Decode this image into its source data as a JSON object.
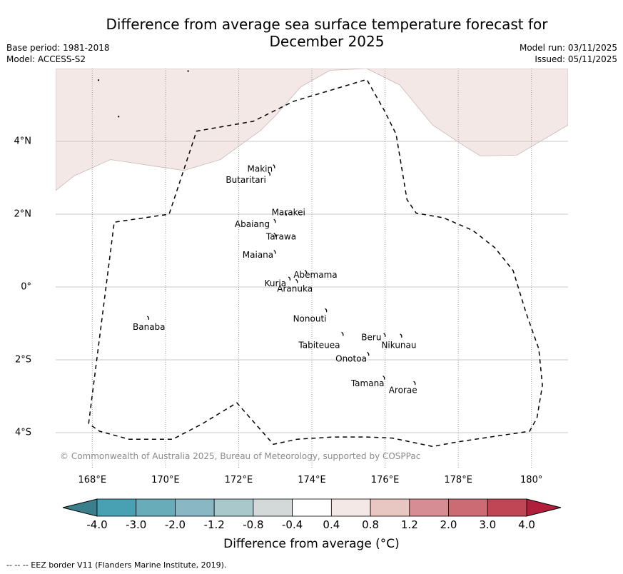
{
  "header": {
    "title_line1": "Difference from average sea surface temperature forecast for",
    "title_line2": "December 2025",
    "base_period": "Base period: 1981-2018",
    "model": "Model: ACCESS-S2",
    "model_run": "Model run: 03/11/2025",
    "issued": "Issued: 05/11/2025"
  },
  "map": {
    "extent": {
      "lon_min": 167.0,
      "lon_max": 181.0,
      "lat_min": -5.0,
      "lat_max": 6.0
    },
    "lat_ticks": [
      {
        "value": 4,
        "label": "4°N"
      },
      {
        "value": 2,
        "label": "2°N"
      },
      {
        "value": 0,
        "label": "0°"
      },
      {
        "value": -2,
        "label": "2°S"
      },
      {
        "value": -4,
        "label": "4°S"
      }
    ],
    "lon_ticks": [
      {
        "value": 168,
        "label": "168°E"
      },
      {
        "value": 170,
        "label": "170°E"
      },
      {
        "value": 172,
        "label": "172°E"
      },
      {
        "value": 174,
        "label": "174°E"
      },
      {
        "value": 176,
        "label": "176°E"
      },
      {
        "value": 178,
        "label": "178°E"
      },
      {
        "value": 180,
        "label": "180°"
      }
    ],
    "anomaly_region": {
      "category": "0.4 to 0.8",
      "color": "#f4e8e6",
      "boundary": [
        [
          167.0,
          2.65
        ],
        [
          167.5,
          3.05
        ],
        [
          168.5,
          3.5
        ],
        [
          170.5,
          3.2
        ],
        [
          171.5,
          3.5
        ],
        [
          172.6,
          4.3
        ],
        [
          173.0,
          4.7
        ],
        [
          173.7,
          5.5
        ],
        [
          174.5,
          5.95
        ],
        [
          175.5,
          6.0
        ],
        [
          176.4,
          5.55
        ],
        [
          177.3,
          4.45
        ],
        [
          178.2,
          3.85
        ],
        [
          178.6,
          3.6
        ],
        [
          179.6,
          3.62
        ],
        [
          181.0,
          4.45
        ],
        [
          181.0,
          6.0
        ],
        [
          167.0,
          6.0
        ]
      ]
    },
    "eez_border": [
      [
        167.9,
        -3.75
      ],
      [
        168.6,
        1.78
      ],
      [
        170.1,
        2.0
      ],
      [
        170.85,
        4.28
      ],
      [
        172.4,
        4.55
      ],
      [
        173.5,
        5.1
      ],
      [
        175.5,
        5.7
      ],
      [
        175.98,
        4.85
      ],
      [
        176.3,
        4.2
      ],
      [
        176.6,
        2.4
      ],
      [
        176.85,
        2.03
      ],
      [
        177.6,
        1.9
      ],
      [
        178.4,
        1.55
      ],
      [
        179.0,
        1.08
      ],
      [
        179.5,
        0.45
      ],
      [
        179.85,
        -0.7
      ],
      [
        180.2,
        -1.7
      ],
      [
        180.3,
        -2.7
      ],
      [
        180.15,
        -3.6
      ],
      [
        179.95,
        -3.96
      ],
      [
        178.0,
        -4.25
      ],
      [
        177.3,
        -4.38
      ],
      [
        176.2,
        -4.15
      ],
      [
        175.5,
        -4.12
      ],
      [
        174.6,
        -4.12
      ],
      [
        173.6,
        -4.18
      ],
      [
        172.95,
        -4.32
      ],
      [
        171.95,
        -3.18
      ],
      [
        171.0,
        -3.76
      ],
      [
        170.2,
        -4.18
      ],
      [
        169.0,
        -4.18
      ],
      [
        168.2,
        -3.96
      ],
      [
        167.9,
        -3.75
      ]
    ],
    "islands": [
      {
        "name": "Makin",
        "lon": 172.98,
        "lat": 3.3,
        "label_lon": 172.93,
        "label_lat": 3.25,
        "anchor": "end"
      },
      {
        "name": "Butaritari",
        "lon": 172.85,
        "lat": 3.1,
        "label_lon": 172.75,
        "label_lat": 2.94,
        "anchor": "end"
      },
      {
        "name": "Marakei",
        "lon": 173.3,
        "lat": 2.0,
        "label_lon": 172.9,
        "label_lat": 2.05,
        "anchor": "start"
      },
      {
        "name": "Abaiang",
        "lon": 173.0,
        "lat": 1.8,
        "label_lon": 172.85,
        "label_lat": 1.73,
        "anchor": "end"
      },
      {
        "name": "Tarawa",
        "lon": 173.0,
        "lat": 1.42,
        "label_lon": 172.75,
        "label_lat": 1.38,
        "anchor": "start"
      },
      {
        "name": "Maiana",
        "lon": 173.0,
        "lat": 0.95,
        "label_lon": 172.95,
        "label_lat": 0.88,
        "anchor": "end"
      },
      {
        "name": "Abemama",
        "lon": 173.85,
        "lat": 0.4,
        "label_lon": 173.5,
        "label_lat": 0.33,
        "anchor": "start"
      },
      {
        "name": "Kuria",
        "lon": 173.4,
        "lat": 0.22,
        "label_lon": 173.3,
        "label_lat": 0.1,
        "anchor": "end"
      },
      {
        "name": "Aranuka",
        "lon": 173.6,
        "lat": 0.15,
        "label_lon": 173.05,
        "label_lat": -0.05,
        "anchor": "start"
      },
      {
        "name": "Banaba",
        "lon": 169.54,
        "lat": -0.86,
        "label_lon": 169.55,
        "label_lat": -1.1,
        "anchor": "middle"
      },
      {
        "name": "Nonouti",
        "lon": 174.4,
        "lat": -0.65,
        "label_lon": 174.4,
        "label_lat": -0.87,
        "anchor": "end"
      },
      {
        "name": "Tabiteuea",
        "lon": 174.85,
        "lat": -1.3,
        "label_lon": 174.77,
        "label_lat": -1.6,
        "anchor": "end"
      },
      {
        "name": "Beru",
        "lon": 176.0,
        "lat": -1.33,
        "label_lon": 175.9,
        "label_lat": -1.38,
        "anchor": "end"
      },
      {
        "name": "Nikunau",
        "lon": 176.45,
        "lat": -1.35,
        "label_lon": 175.9,
        "label_lat": -1.6,
        "anchor": "start"
      },
      {
        "name": "Onotoa",
        "lon": 175.55,
        "lat": -1.85,
        "label_lon": 175.5,
        "label_lat": -1.97,
        "anchor": "end"
      },
      {
        "name": "Tamana",
        "lon": 175.98,
        "lat": -2.5,
        "label_lon": 175.98,
        "label_lat": -2.65,
        "anchor": "end"
      },
      {
        "name": "Arorae",
        "lon": 176.82,
        "lat": -2.65,
        "label_lon": 176.1,
        "label_lat": -2.83,
        "anchor": "start"
      }
    ],
    "copyright": "© Commonwealth of Australia 2025, Bureau of Meteorology, supported by COSPPac"
  },
  "colorbar": {
    "title": "Difference from average (°C)",
    "under_color": "#3b7f8c",
    "over_color": "#b01f3a",
    "bounds": [
      "-4.0",
      "-3.0",
      "-2.0",
      "-1.2",
      "-0.8",
      "-0.4",
      "0.4",
      "0.8",
      "1.2",
      "2.0",
      "3.0",
      "4.0"
    ],
    "colors": [
      "#47a1b2",
      "#68abb9",
      "#89b8c4",
      "#a9c8cc",
      "#d3d9d9",
      "#ffffff",
      "#f4e8e6",
      "#e8c6c1",
      "#d68e94",
      "#cc6b74",
      "#c04555"
    ]
  },
  "footer": {
    "legend": "--  --  -- EEZ border V11 (Flanders Marine Institute, 2019)."
  }
}
